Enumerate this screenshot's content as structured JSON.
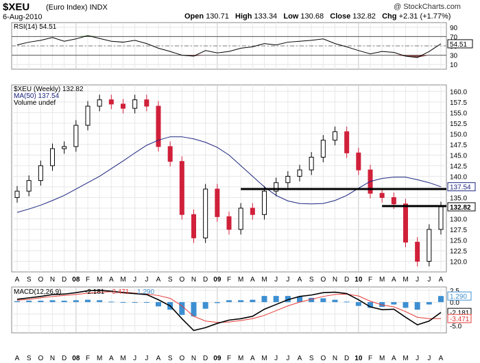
{
  "header": {
    "symbol": "$XEU",
    "description": "(Euro Index)",
    "exchange": "INDX",
    "date": "6-Aug-2010",
    "open_label": "Open",
    "open": "130.71",
    "high_label": "High",
    "high": "133.34",
    "low_label": "Low",
    "low": "130.68",
    "close_label": "Close",
    "close": "132.82",
    "chg_label": "Chg",
    "chg": "+2.31 (+1.77%)",
    "copyright": "@ StockCharts.com"
  },
  "colors": {
    "up": "#000000",
    "down": "#d0203a",
    "ma": "#1a237e",
    "macd": "#000000",
    "signal": "#e53935",
    "histogram": "#3d8fd1",
    "rsi_overbought_fill": "#4a7a3a",
    "rsi_oversold_fill": "#8b4a4a"
  },
  "chart_data": [
    {
      "type": "line",
      "title": "RSI(14)",
      "legend_label": "RSI(14) 54.51",
      "value_label": "54.51",
      "yticks": [
        "90",
        "70",
        "50",
        "30",
        "10"
      ],
      "ylim": [
        0,
        100
      ],
      "reference_lines": [
        70,
        30
      ],
      "x": [
        "2007-08",
        "2007-09",
        "2007-10",
        "2007-11",
        "2007-12",
        "2008-01",
        "2008-02",
        "2008-03",
        "2008-04",
        "2008-05",
        "2008-06",
        "2008-07",
        "2008-08",
        "2008-09",
        "2008-10",
        "2008-11",
        "2008-12",
        "2009-01",
        "2009-02",
        "2009-03",
        "2009-04",
        "2009-05",
        "2009-06",
        "2009-07",
        "2009-08",
        "2009-09",
        "2009-10",
        "2009-11",
        "2009-12",
        "2010-01",
        "2010-02",
        "2010-03",
        "2010-04",
        "2010-05",
        "2010-06",
        "2010-07",
        "2010-08"
      ],
      "values": [
        52,
        58,
        62,
        68,
        60,
        65,
        72,
        66,
        60,
        58,
        62,
        55,
        45,
        38,
        30,
        28,
        40,
        35,
        38,
        45,
        48,
        55,
        52,
        58,
        60,
        62,
        65,
        55,
        48,
        40,
        33,
        38,
        36,
        28,
        25,
        38,
        54.51
      ]
    },
    {
      "type": "candlestick",
      "title": "$XEU (Weekly) 132.82",
      "legend": [
        "$XEU (Weekly) 132.82",
        "MA(50) 137.54",
        "Volume undef"
      ],
      "last_price_label": "132.82",
      "ma_label": "137.54",
      "yticks": [
        "160.0",
        "157.5",
        "155.0",
        "152.5",
        "150.0",
        "147.5",
        "145.0",
        "142.5",
        "140.0",
        "137.5",
        "135.0",
        "132.5",
        "130.0",
        "127.5",
        "125.0",
        "122.5",
        "120.0"
      ],
      "ylim": [
        117.5,
        161.5
      ],
      "xticks": [
        "A",
        "S",
        "O",
        "N",
        "D",
        "08",
        "F",
        "M",
        "A",
        "M",
        "J",
        "J",
        "A",
        "S",
        "O",
        "N",
        "D",
        "09",
        "F",
        "M",
        "A",
        "M",
        "J",
        "J",
        "A",
        "S",
        "O",
        "N",
        "D",
        "10",
        "F",
        "M",
        "A",
        "M",
        "J",
        "J",
        "A"
      ],
      "x": [
        "2007-08",
        "2007-09",
        "2007-10",
        "2007-11",
        "2007-12",
        "2008-01",
        "2008-02",
        "2008-03",
        "2008-04",
        "2008-05",
        "2008-06",
        "2008-07",
        "2008-08",
        "2008-09",
        "2008-10",
        "2008-11",
        "2008-12",
        "2009-01",
        "2009-02",
        "2009-03",
        "2009-04",
        "2009-05",
        "2009-06",
        "2009-07",
        "2009-08",
        "2009-09",
        "2009-10",
        "2009-11",
        "2009-12",
        "2010-01",
        "2010-02",
        "2010-03",
        "2010-04",
        "2010-05",
        "2010-06",
        "2010-07",
        "2010-08"
      ],
      "close": [
        136.5,
        139.0,
        142.5,
        146.5,
        147.0,
        152.0,
        156.5,
        158.0,
        157.0,
        156.0,
        158.0,
        156.5,
        147.0,
        143.5,
        131.0,
        125.5,
        137.0,
        130.5,
        127.5,
        132.5,
        131.0,
        136.5,
        138.5,
        140.0,
        141.5,
        144.5,
        148.5,
        150.5,
        145.5,
        141.5,
        136.0,
        135.0,
        133.5,
        124.5,
        120.0,
        127.5,
        132.82
      ],
      "ma50": [
        131.5,
        132.3,
        133.2,
        134.3,
        135.5,
        137.0,
        138.5,
        140.0,
        141.8,
        143.6,
        145.5,
        147.3,
        148.5,
        149.3,
        149.3,
        148.8,
        148.0,
        146.8,
        145.0,
        142.5,
        140.0,
        137.5,
        135.5,
        134.2,
        133.6,
        133.5,
        133.6,
        134.3,
        135.5,
        137.2,
        138.8,
        139.5,
        139.8,
        139.8,
        139.2,
        138.5,
        137.54
      ],
      "support_lines": [
        {
          "from": "2009-03",
          "to": "2010-08",
          "value": 137.0
        },
        {
          "from": "2010-03",
          "to": "2010-08",
          "value": 133.0
        }
      ]
    },
    {
      "type": "line",
      "title": "MACD(12,26,9)",
      "legend": [
        "MACD(12,26,9)",
        "-2.181",
        "-3.471",
        "1.290"
      ],
      "yticks": [
        "2.5",
        "0.0",
        "-2.5",
        "-5.0"
      ],
      "ylim": [
        -6.5,
        3.2
      ],
      "value_labels": [
        "1.290",
        "-2.181",
        "-3.471"
      ],
      "x": [
        "2007-08",
        "2007-09",
        "2007-10",
        "2007-11",
        "2007-12",
        "2008-01",
        "2008-02",
        "2008-03",
        "2008-04",
        "2008-05",
        "2008-06",
        "2008-07",
        "2008-08",
        "2008-09",
        "2008-10",
        "2008-11",
        "2008-12",
        "2009-01",
        "2009-02",
        "2009-03",
        "2009-04",
        "2009-05",
        "2009-06",
        "2009-07",
        "2009-08",
        "2009-09",
        "2009-10",
        "2009-11",
        "2009-12",
        "2010-01",
        "2010-02",
        "2010-03",
        "2010-04",
        "2010-05",
        "2010-06",
        "2010-07",
        "2010-08"
      ],
      "series": [
        {
          "values": [
            0.6,
            0.9,
            1.2,
            1.6,
            1.7,
            2.0,
            2.4,
            2.5,
            2.3,
            2.0,
            1.8,
            1.6,
            0.5,
            -0.8,
            -3.5,
            -6.0,
            -5.4,
            -4.5,
            -3.8,
            -3.5,
            -3.0,
            -1.5,
            -0.5,
            0.5,
            1.2,
            1.5,
            2.0,
            2.1,
            1.8,
            0.5,
            -1.0,
            -1.6,
            -1.5,
            -3.2,
            -4.8,
            -4.0,
            -2.181
          ]
        },
        {
          "values": [
            0.4,
            0.6,
            0.9,
            1.2,
            1.4,
            1.6,
            1.9,
            2.1,
            2.2,
            2.1,
            1.9,
            1.7,
            1.4,
            0.8,
            -0.8,
            -3.0,
            -4.0,
            -4.3,
            -4.2,
            -3.9,
            -3.5,
            -2.8,
            -1.8,
            -0.8,
            0.0,
            0.6,
            1.2,
            1.6,
            1.7,
            1.3,
            0.2,
            -0.6,
            -1.0,
            -2.0,
            -3.2,
            -3.5,
            -3.471
          ]
        },
        {
          "values": [
            0.2,
            0.3,
            0.3,
            0.4,
            0.3,
            0.4,
            0.5,
            0.4,
            0.1,
            -0.1,
            -0.1,
            -0.1,
            -0.9,
            -1.6,
            -2.7,
            -3.0,
            -1.4,
            -0.2,
            0.4,
            0.4,
            0.5,
            1.3,
            1.3,
            1.3,
            1.2,
            0.9,
            0.8,
            0.5,
            0.1,
            -0.8,
            -1.2,
            -1.0,
            -0.5,
            -1.2,
            -1.6,
            -0.5,
            1.29
          ]
        }
      ]
    }
  ]
}
